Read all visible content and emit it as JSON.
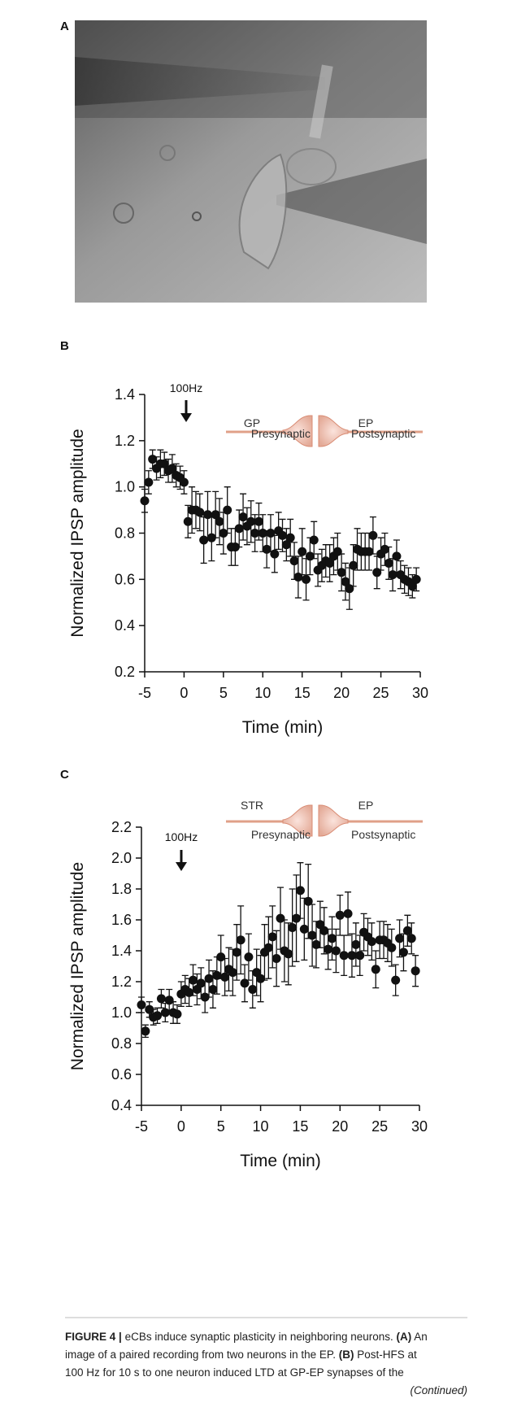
{
  "panels": {
    "a": "A",
    "b": "B",
    "c": "C"
  },
  "chart_data": [
    {
      "type": "scatter",
      "annotation": "100Hz",
      "xlabel": "Time (min)",
      "ylabel": "Normalized IPSP amplitude",
      "schematic": {
        "pre_label": "GP",
        "post_label": "EP",
        "pre_role": "Presynaptic",
        "post_role": "Postsynaptic"
      },
      "xlim": [
        -5,
        30
      ],
      "xticks": [
        -5,
        0,
        5,
        10,
        15,
        20,
        25,
        30
      ],
      "ylim": [
        0.2,
        1.4
      ],
      "yticks": [
        0.2,
        0.4,
        0.6,
        0.8,
        {
          "value": 1,
          "label": "1.0"
        },
        1.2,
        1.4
      ],
      "color": "#111111",
      "x": [
        -5,
        -4.5,
        -4,
        -3.5,
        -3,
        -2.5,
        -2,
        -1.5,
        -1,
        -0.5,
        0,
        0.5,
        1,
        1.5,
        2,
        2.5,
        3,
        3.5,
        4,
        4.5,
        5,
        5.5,
        6,
        6.5,
        7,
        7.5,
        8,
        8.5,
        9,
        9.5,
        10,
        10.5,
        11,
        11.5,
        12,
        12.5,
        13,
        13.5,
        14,
        14.5,
        15,
        15.5,
        16,
        16.5,
        17,
        17.5,
        18,
        18.5,
        19,
        19.5,
        20,
        20.5,
        21,
        21.5,
        22,
        22.5,
        23,
        23.5,
        24,
        24.5,
        25,
        25.5,
        26,
        26.5,
        27,
        27.5,
        28,
        28.5,
        29,
        29.5
      ],
      "values": [
        0.94,
        1.02,
        1.12,
        1.08,
        1.1,
        1.1,
        1.07,
        1.08,
        1.05,
        1.04,
        1.02,
        0.85,
        0.9,
        0.9,
        0.89,
        0.77,
        0.88,
        0.78,
        0.88,
        0.85,
        0.8,
        0.9,
        0.74,
        0.74,
        0.82,
        0.87,
        0.83,
        0.85,
        0.8,
        0.85,
        0.8,
        0.73,
        0.8,
        0.71,
        0.81,
        0.79,
        0.75,
        0.78,
        0.68,
        0.61,
        0.72,
        0.6,
        0.7,
        0.77,
        0.64,
        0.66,
        0.68,
        0.67,
        0.7,
        0.72,
        0.63,
        0.59,
        0.56,
        0.66,
        0.73,
        0.72,
        0.72,
        0.72,
        0.79,
        0.63,
        0.71,
        0.73,
        0.67,
        0.62,
        0.7,
        0.62,
        0.6,
        0.59,
        0.57,
        0.6
      ],
      "errors": [
        0.05,
        0.05,
        0.04,
        0.05,
        0.06,
        0.05,
        0.05,
        0.06,
        0.05,
        0.05,
        0.05,
        0.07,
        0.1,
        0.08,
        0.08,
        0.1,
        0.1,
        0.1,
        0.1,
        0.1,
        0.09,
        0.1,
        0.08,
        0.08,
        0.08,
        0.1,
        0.08,
        0.09,
        0.08,
        0.08,
        0.08,
        0.08,
        0.08,
        0.08,
        0.08,
        0.07,
        0.07,
        0.08,
        0.08,
        0.09,
        0.1,
        0.09,
        0.08,
        0.08,
        0.07,
        0.07,
        0.07,
        0.08,
        0.08,
        0.08,
        0.08,
        0.08,
        0.09,
        0.09,
        0.09,
        0.08,
        0.08,
        0.08,
        0.08,
        0.07,
        0.07,
        0.07,
        0.07,
        0.07,
        0.07,
        0.06,
        0.06,
        0.06,
        0.05,
        0.05
      ]
    },
    {
      "type": "scatter",
      "annotation": "100Hz",
      "xlabel": "Time (min)",
      "ylabel": "Normalized IPSP amplitude",
      "schematic": {
        "pre_label": "STR",
        "post_label": "EP",
        "pre_role": "Presynaptic",
        "post_role": "Postsynaptic"
      },
      "xlim": [
        -5,
        30
      ],
      "xticks": [
        -5,
        0,
        5,
        10,
        15,
        20,
        25,
        30
      ],
      "ylim": [
        0.4,
        2.2
      ],
      "yticks": [
        0.4,
        0.6,
        0.8,
        {
          "value": 1,
          "label": "1.0"
        },
        1.2,
        1.4,
        1.6,
        1.8,
        {
          "value": 2,
          "label": "2.0"
        },
        2.2
      ],
      "color": "#111111",
      "x": [
        -5,
        -4.5,
        -4,
        -3.5,
        -3,
        -2.5,
        -2,
        -1.5,
        -1,
        -0.5,
        0,
        0.5,
        1,
        1.5,
        2,
        2.5,
        3,
        3.5,
        4,
        4.5,
        5,
        5.5,
        6,
        6.5,
        7,
        7.5,
        8,
        8.5,
        9,
        9.5,
        10,
        10.5,
        11,
        11.5,
        12,
        12.5,
        13,
        13.5,
        14,
        14.5,
        15,
        15.5,
        16,
        16.5,
        17,
        17.5,
        18,
        18.5,
        19,
        19.5,
        20,
        20.5,
        21,
        21.5,
        22,
        22.5,
        23,
        23.5,
        24,
        24.5,
        25,
        25.5,
        26,
        26.5,
        27,
        27.5,
        28,
        28.5,
        29,
        29.5
      ],
      "values": [
        1.05,
        0.88,
        1.02,
        0.97,
        0.98,
        1.09,
        1.0,
        1.08,
        1.0,
        0.99,
        1.12,
        1.15,
        1.13,
        1.21,
        1.15,
        1.19,
        1.1,
        1.22,
        1.15,
        1.24,
        1.36,
        1.23,
        1.28,
        1.26,
        1.39,
        1.47,
        1.19,
        1.36,
        1.15,
        1.26,
        1.22,
        1.39,
        1.42,
        1.49,
        1.35,
        1.61,
        1.4,
        1.38,
        1.55,
        1.61,
        1.79,
        1.54,
        1.72,
        1.5,
        1.44,
        1.57,
        1.53,
        1.41,
        1.48,
        1.4,
        1.63,
        1.37,
        1.64,
        1.37,
        1.44,
        1.37,
        1.52,
        1.49,
        1.46,
        1.28,
        1.47,
        1.47,
        1.45,
        1.42,
        1.21,
        1.48,
        1.39,
        1.53,
        1.48,
        1.27
      ],
      "errors": [
        0.05,
        0.04,
        0.05,
        0.05,
        0.05,
        0.06,
        0.06,
        0.07,
        0.07,
        0.06,
        0.08,
        0.09,
        0.09,
        0.1,
        0.1,
        0.1,
        0.1,
        0.12,
        0.12,
        0.12,
        0.14,
        0.12,
        0.14,
        0.15,
        0.18,
        0.22,
        0.12,
        0.15,
        0.12,
        0.15,
        0.15,
        0.18,
        0.2,
        0.2,
        0.18,
        0.2,
        0.2,
        0.2,
        0.25,
        0.28,
        0.18,
        0.2,
        0.24,
        0.2,
        0.15,
        0.15,
        0.15,
        0.13,
        0.14,
        0.14,
        0.13,
        0.13,
        0.14,
        0.14,
        0.14,
        0.13,
        0.12,
        0.12,
        0.12,
        0.12,
        0.12,
        0.12,
        0.12,
        0.12,
        0.1,
        0.12,
        0.12,
        0.1,
        0.1,
        0.1
      ]
    }
  ],
  "caption": {
    "lines": [
      [
        "FIGURE 4 |",
        "eCBs induce synaptic plasticity in neighboring neurons.",
        "(A)",
        "An"
      ],
      [
        "image of a paired recording from two neurons in the EP.",
        "(B)",
        "Post-HFS at"
      ],
      [
        "100 Hz for 10 s to one neuron induced LTD at GP-EP synapses of the"
      ]
    ],
    "continued": "(Continued)"
  }
}
